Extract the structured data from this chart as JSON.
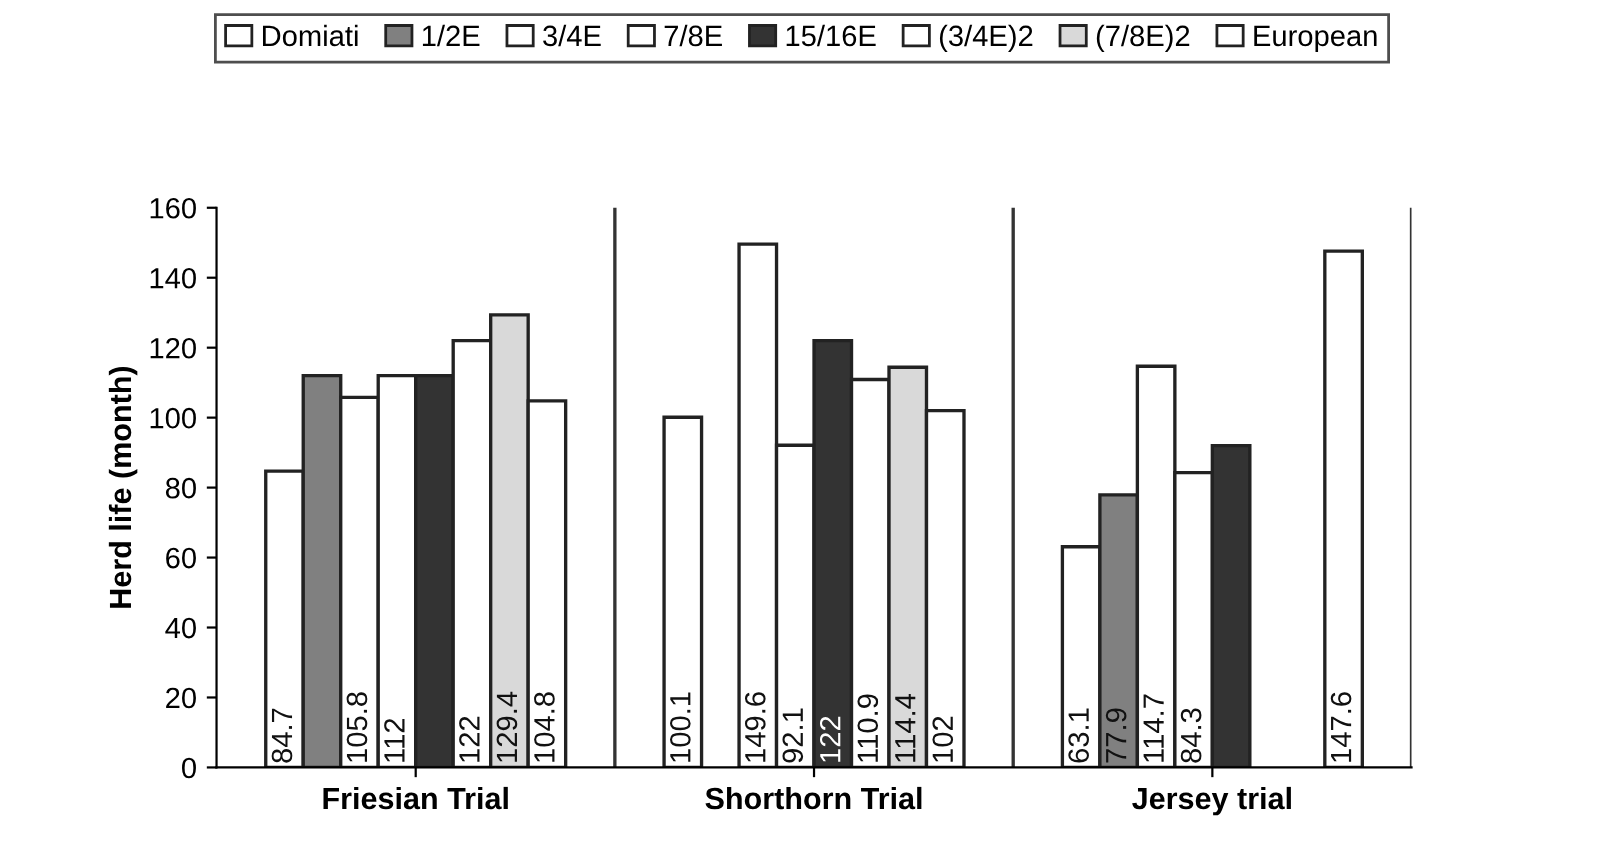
{
  "chart_data": {
    "type": "bar",
    "ylabel": "Herd life (month)",
    "categories": [
      "Friesian Trial",
      "Shorthorn Trial",
      "Jersey trial"
    ],
    "series": [
      {
        "name": "Domiati",
        "color": "#ffffff",
        "values": [
          84.7,
          100.1,
          63.1
        ],
        "value_labels": [
          "84.7",
          "100.1",
          "63.1"
        ]
      },
      {
        "name": "1/2E",
        "color": "#808080",
        "values": [
          112,
          null,
          77.9
        ],
        "value_labels": [
          null,
          null,
          "77.9"
        ]
      },
      {
        "name": "3/4E",
        "color": "#ffffff",
        "values": [
          105.8,
          149.6,
          114.7
        ],
        "value_labels": [
          "105.8",
          "149.6",
          "114.7"
        ]
      },
      {
        "name": "7/8E",
        "color": "#ffffff",
        "values": [
          112,
          92.1,
          84.3
        ],
        "value_labels": [
          "112",
          "92.1",
          "84.3"
        ]
      },
      {
        "name": "15/16E",
        "color": "#333333",
        "values": [
          112,
          122,
          92
        ],
        "value_labels": [
          null,
          "122",
          null
        ]
      },
      {
        "name": "(3/4E)2",
        "color": "#ffffff",
        "values": [
          122,
          110.9,
          null
        ],
        "value_labels": [
          "122",
          "110.9",
          null
        ]
      },
      {
        "name": "(7/8E)2",
        "color": "#d9d9d9",
        "values": [
          129.4,
          114.4,
          null
        ],
        "value_labels": [
          "129.4",
          "114.4",
          null
        ]
      },
      {
        "name": "European",
        "color": "#ffffff",
        "values": [
          104.8,
          102,
          147.6
        ],
        "value_labels": [
          "104.8",
          "102",
          "147.6"
        ]
      }
    ],
    "ylim": [
      0,
      160
    ],
    "yticks": [
      0,
      20,
      40,
      60,
      80,
      100,
      120,
      140,
      160
    ],
    "grid": false,
    "legend": "top"
  }
}
